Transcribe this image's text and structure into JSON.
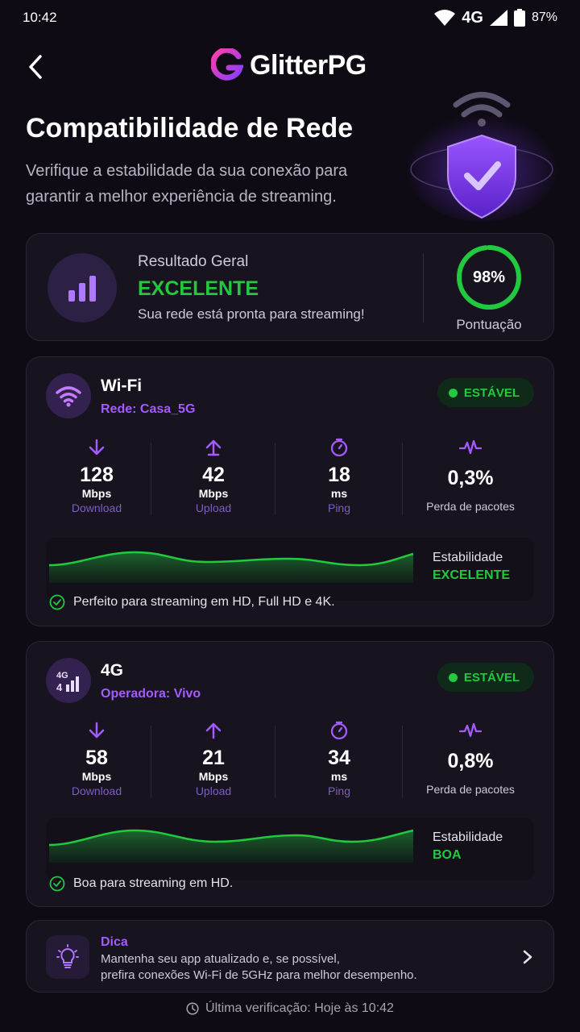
{
  "status_bar": {
    "time": "10:42",
    "network": "4G",
    "battery": "87%"
  },
  "header": {
    "brand": "GlitterPG"
  },
  "page": {
    "title": "Compatibilidade de Rede",
    "subtitle": "Verifique a estabilidade da sua conexão para garantir a melhor experiência de streaming."
  },
  "summary": {
    "label": "Resultado Geral",
    "value": "EXCELENTE",
    "description": "Sua rede está pronta para streaming!",
    "score": "98%",
    "score_fraction": 0.98,
    "score_label": "Pontuação"
  },
  "wifi": {
    "name": "Wi-Fi",
    "network": "Rede: Casa_5G",
    "status": "ESTÁVEL",
    "download": {
      "value": "128",
      "unit": "Mbps",
      "label": "Download"
    },
    "upload": {
      "value": "42",
      "unit": "Mbps",
      "label": "Upload"
    },
    "ping": {
      "value": "18",
      "unit": "ms",
      "label": "Ping"
    },
    "loss": {
      "value": "0,3%",
      "label": "Perda de pacotes"
    },
    "stability_label": "Estabilidade",
    "stability_value": "EXCELENTE",
    "note": "Perfeito para streaming em HD, Full HD e 4K."
  },
  "cell": {
    "name": "4G",
    "network": "Operadora: Vivo",
    "status": "ESTÁVEL",
    "download": {
      "value": "58",
      "unit": "Mbps",
      "label": "Download"
    },
    "upload": {
      "value": "21",
      "unit": "Mbps",
      "label": "Upload"
    },
    "ping": {
      "value": "34",
      "unit": "ms",
      "label": "Ping"
    },
    "loss": {
      "value": "0,8%",
      "label": "Perda de pacotes"
    },
    "stability_label": "Estabilidade",
    "stability_value": "BOA",
    "note": "Boa para streaming em HD."
  },
  "tip": {
    "title": "Dica",
    "line1": "Mantenha seu app atualizado e, se possível,",
    "line2": "prefira conexões Wi-Fi de 5GHz para melhor desempenho."
  },
  "footer": {
    "last_check": "Última verificação: Hoje às 10:42"
  },
  "colors": {
    "accent": "#a45bff",
    "success": "#22c93f",
    "background": "#0e0b14",
    "card": "#17131f"
  }
}
